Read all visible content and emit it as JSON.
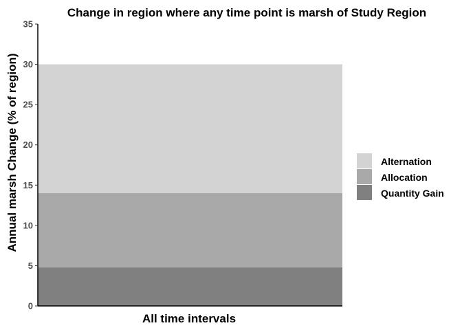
{
  "chart_data": {
    "type": "bar",
    "stacked": true,
    "title": "Change in region where any time point is marsh of Study Region",
    "xlabel": "All time intervals",
    "ylabel": "Annual marsh Change (% of region)",
    "ylim": [
      0,
      35
    ],
    "yticks": [
      "0",
      "5",
      "10",
      "15",
      "20",
      "25",
      "30",
      "35"
    ],
    "grid": false,
    "legend_position": "right",
    "categories": [
      ""
    ],
    "series": [
      {
        "name": "Quantity Gain",
        "values": [
          4.8
        ],
        "color": "#808080"
      },
      {
        "name": "Allocation",
        "values": [
          9.2
        ],
        "color": "#a9a9a9"
      },
      {
        "name": "Alternation",
        "values": [
          16.0
        ],
        "color": "#d3d3d3"
      }
    ],
    "legend_order": [
      "Alternation",
      "Allocation",
      "Quantity Gain"
    ]
  }
}
